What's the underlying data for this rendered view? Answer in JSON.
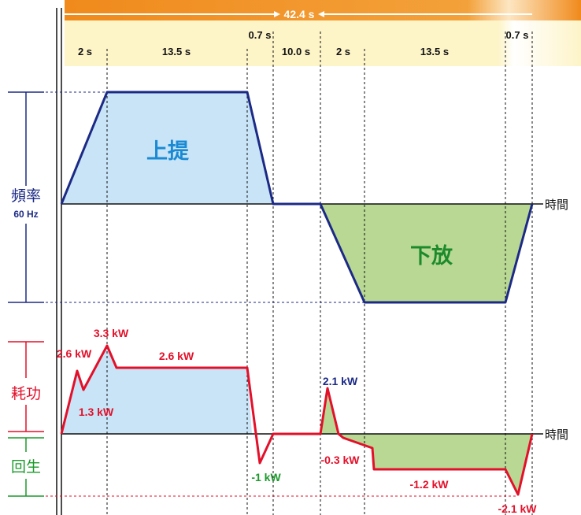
{
  "timing": {
    "total": "42.4 s",
    "segments_upper": [
      "0.7 s",
      "0.7 s"
    ],
    "segments_lower": [
      "2 s",
      "13.5 s",
      "10.0 s",
      "2 s",
      "13.5 s"
    ]
  },
  "frequency": {
    "axis_label": "頻率",
    "max_label": "60 Hz",
    "time_label": "時間",
    "lift_label": "上提",
    "lower_label": "下放"
  },
  "power": {
    "consume_label": "耗功",
    "regen_label": "回生",
    "time_label": "時間",
    "values": {
      "p26a": "2.6 kW",
      "p33": "3.3 kW",
      "p13": "1.3 kW",
      "p26b": "2.6 kW",
      "pm1": "-1 kW",
      "p21": "2.1 kW",
      "pm03": "-0.3 kW",
      "pm12": "-1.2 kW",
      "pm21": "-2.1 kW"
    }
  },
  "colors": {
    "orange": "#f08a1c",
    "cream": "#fdf4c8",
    "navy": "#1c2a86",
    "blue_fill": "#c8e4f6",
    "green_fill": "#b8d894",
    "red": "#e3102a",
    "green": "#1c9a2c",
    "title_blue": "#1a8ad4",
    "title_green": "#1c8a2a"
  }
}
